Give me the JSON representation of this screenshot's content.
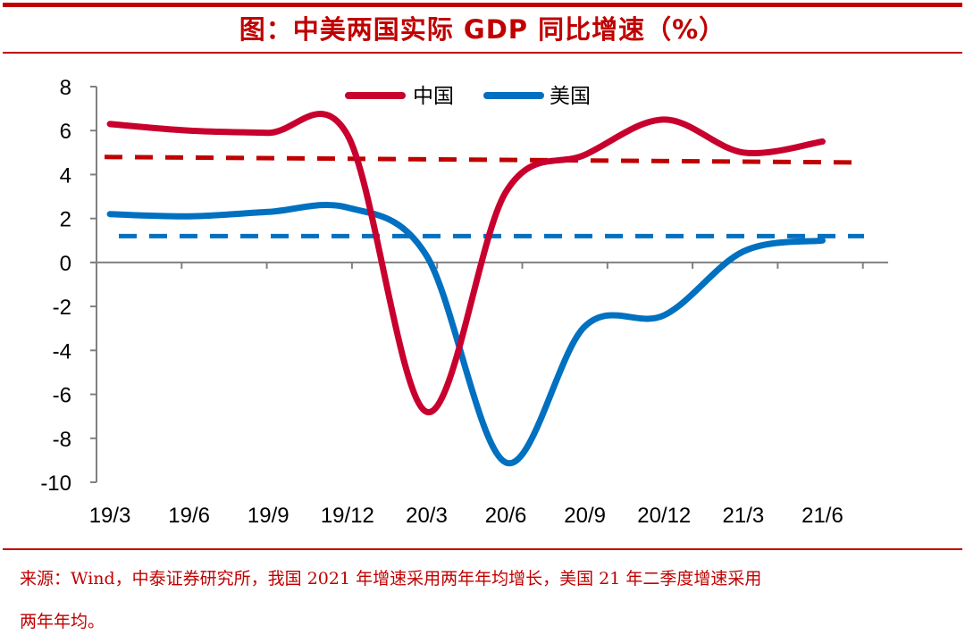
{
  "header": {
    "title": "图：中美两国实际 GDP 同比增速（%）"
  },
  "footnote": {
    "line1": "来源：Wind，中泰证券研究所，我国 2021 年增速采用两年年均增长，美国 21 年二季度增速采用",
    "line2": "两年年均。"
  },
  "colors": {
    "brand_red": "#c00000",
    "china": "#c8002e",
    "usa": "#0070c0",
    "china_dashed": "#c00000",
    "usa_dashed": "#0070c0",
    "axis": "#808080"
  },
  "chart_data": {
    "type": "line",
    "title": "图：中美两国实际 GDP 同比增速（%）",
    "xlabel": "",
    "ylabel": "",
    "categories": [
      "19/3",
      "19/6",
      "19/9",
      "19/12",
      "20/3",
      "20/6",
      "20/9",
      "20/12",
      "21/3",
      "21/6"
    ],
    "series": [
      {
        "name": "中国",
        "values": [
          6.3,
          6.0,
          5.9,
          5.8,
          -6.8,
          3.2,
          4.9,
          6.5,
          5.0,
          5.5
        ],
        "style": "solid-smooth"
      },
      {
        "name": "美国",
        "values": [
          2.2,
          2.1,
          2.3,
          2.5,
          0.3,
          -9.1,
          -2.9,
          -2.4,
          0.5,
          1.0
        ],
        "style": "solid-smooth"
      }
    ],
    "reference_lines": [
      {
        "series": "中国",
        "style": "dashed",
        "start_value": 4.8,
        "end_value": 4.55
      },
      {
        "series": "美国",
        "style": "dashed",
        "start_value": 1.2,
        "end_value": 1.2
      }
    ],
    "ylim": [
      -10,
      8
    ],
    "yticks": [
      8,
      6,
      4,
      2,
      0,
      -2,
      -4,
      -6,
      -8,
      -10
    ],
    "grid": false,
    "legend": {
      "position": "top-center",
      "entries": [
        "中国",
        "美国"
      ]
    }
  }
}
